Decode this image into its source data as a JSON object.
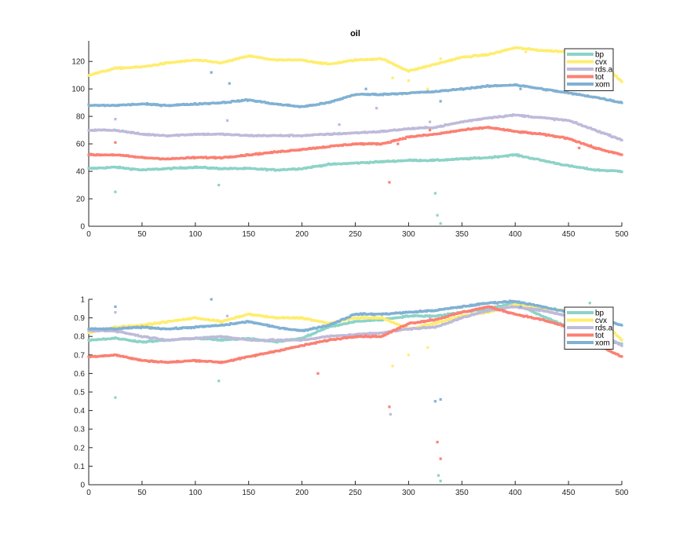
{
  "chart_data": [
    {
      "type": "scatter",
      "title": "oil",
      "xlim": [
        0,
        500
      ],
      "ylim": [
        0,
        135
      ],
      "xticks": [
        "0",
        "50",
        "100",
        "150",
        "200",
        "250",
        "300",
        "350",
        "400",
        "450",
        "500"
      ],
      "yticks": [
        "0",
        "20",
        "40",
        "60",
        "80",
        "100",
        "120"
      ],
      "grid": false,
      "legend": "top-right",
      "series": [
        {
          "name": "bp",
          "color": "#8dd3c7",
          "points": [
            [
              0,
              42
            ],
            [
              25,
              43
            ],
            [
              50,
              41
            ],
            [
              75,
              42
            ],
            [
              100,
              43
            ],
            [
              125,
              42
            ],
            [
              150,
              42
            ],
            [
              175,
              41
            ],
            [
              200,
              42
            ],
            [
              225,
              45
            ],
            [
              250,
              46
            ],
            [
              275,
              47
            ],
            [
              300,
              48
            ],
            [
              325,
              48
            ],
            [
              350,
              49
            ],
            [
              375,
              50
            ],
            [
              400,
              52
            ],
            [
              425,
              48
            ],
            [
              450,
              44
            ],
            [
              475,
              41
            ],
            [
              500,
              40
            ]
          ],
          "outliers": [
            [
              25,
              25
            ],
            [
              325,
              24
            ],
            [
              327,
              8
            ],
            [
              330,
              2
            ],
            [
              122,
              30
            ]
          ]
        },
        {
          "name": "cvx",
          "color": "#ffed6f",
          "points": [
            [
              0,
              110
            ],
            [
              25,
              115
            ],
            [
              50,
              116
            ],
            [
              75,
              119
            ],
            [
              100,
              121
            ],
            [
              125,
              119
            ],
            [
              150,
              124
            ],
            [
              175,
              121
            ],
            [
              200,
              121
            ],
            [
              225,
              118
            ],
            [
              250,
              121
            ],
            [
              275,
              122
            ],
            [
              300,
              113
            ],
            [
              325,
              118
            ],
            [
              350,
              123
            ],
            [
              375,
              125
            ],
            [
              400,
              130
            ],
            [
              425,
              128
            ],
            [
              450,
              127
            ],
            [
              475,
              124
            ],
            [
              500,
              105
            ]
          ],
          "outliers": [
            [
              285,
              108
            ],
            [
              300,
              106
            ],
            [
              318,
              100
            ],
            [
              330,
              122
            ],
            [
              410,
              127
            ]
          ]
        },
        {
          "name": "rds.a",
          "color": "#bebada",
          "points": [
            [
              0,
              70
            ],
            [
              25,
              70
            ],
            [
              50,
              67
            ],
            [
              75,
              66
            ],
            [
              100,
              67
            ],
            [
              125,
              67
            ],
            [
              150,
              66
            ],
            [
              175,
              66
            ],
            [
              200,
              66
            ],
            [
              225,
              67
            ],
            [
              250,
              68
            ],
            [
              275,
              69
            ],
            [
              300,
              71
            ],
            [
              325,
              72
            ],
            [
              350,
              76
            ],
            [
              375,
              79
            ],
            [
              400,
              81
            ],
            [
              425,
              79
            ],
            [
              450,
              77
            ],
            [
              475,
              70
            ],
            [
              500,
              63
            ]
          ],
          "outliers": [
            [
              25,
              78
            ],
            [
              130,
              77
            ],
            [
              235,
              74
            ],
            [
              270,
              86
            ],
            [
              320,
              76
            ]
          ]
        },
        {
          "name": "tot",
          "color": "#fb8072",
          "points": [
            [
              0,
              52
            ],
            [
              25,
              52
            ],
            [
              50,
              50
            ],
            [
              75,
              49
            ],
            [
              100,
              50
            ],
            [
              125,
              50
            ],
            [
              150,
              52
            ],
            [
              175,
              54
            ],
            [
              200,
              56
            ],
            [
              225,
              58
            ],
            [
              250,
              60
            ],
            [
              275,
              60
            ],
            [
              300,
              65
            ],
            [
              325,
              67
            ],
            [
              350,
              70
            ],
            [
              375,
              72
            ],
            [
              400,
              69
            ],
            [
              425,
              67
            ],
            [
              450,
              64
            ],
            [
              475,
              57
            ],
            [
              500,
              52
            ]
          ],
          "outliers": [
            [
              25,
              61
            ],
            [
              282,
              32
            ],
            [
              290,
              60
            ],
            [
              320,
              70
            ],
            [
              460,
              57
            ]
          ]
        },
        {
          "name": "xom",
          "color": "#80b1d3",
          "points": [
            [
              0,
              88
            ],
            [
              25,
              88
            ],
            [
              50,
              89
            ],
            [
              75,
              88
            ],
            [
              100,
              89
            ],
            [
              125,
              90
            ],
            [
              150,
              92
            ],
            [
              175,
              89
            ],
            [
              200,
              87
            ],
            [
              225,
              90
            ],
            [
              250,
              96
            ],
            [
              275,
              96
            ],
            [
              300,
              97
            ],
            [
              325,
              98
            ],
            [
              350,
              100
            ],
            [
              375,
              102
            ],
            [
              400,
              103
            ],
            [
              425,
              100
            ],
            [
              450,
              97
            ],
            [
              475,
              94
            ],
            [
              500,
              90
            ]
          ],
          "outliers": [
            [
              115,
              112
            ],
            [
              132,
              104
            ],
            [
              260,
              100
            ],
            [
              330,
              91
            ],
            [
              405,
              100
            ]
          ]
        }
      ]
    },
    {
      "type": "scatter",
      "title": "",
      "xlim": [
        0,
        500
      ],
      "ylim": [
        0,
        1
      ],
      "xticks": [
        "0",
        "50",
        "100",
        "150",
        "200",
        "250",
        "300",
        "350",
        "400",
        "450",
        "500"
      ],
      "yticks": [
        "0",
        "0.1",
        "0.2",
        "0.3",
        "0.4",
        "0.5",
        "0.6",
        "0.7",
        "0.8",
        "0.9",
        "1"
      ],
      "grid": false,
      "legend": "top-right",
      "series": [
        {
          "name": "bp",
          "color": "#8dd3c7",
          "points": [
            [
              0,
              0.78
            ],
            [
              25,
              0.79
            ],
            [
              50,
              0.77
            ],
            [
              75,
              0.78
            ],
            [
              100,
              0.79
            ],
            [
              125,
              0.78
            ],
            [
              150,
              0.79
            ],
            [
              175,
              0.77
            ],
            [
              200,
              0.79
            ],
            [
              225,
              0.85
            ],
            [
              250,
              0.88
            ],
            [
              275,
              0.89
            ],
            [
              300,
              0.91
            ],
            [
              325,
              0.91
            ],
            [
              350,
              0.93
            ],
            [
              375,
              0.95
            ],
            [
              400,
              0.98
            ],
            [
              425,
              0.91
            ],
            [
              450,
              0.85
            ],
            [
              475,
              0.78
            ],
            [
              500,
              0.76
            ]
          ],
          "outliers": [
            [
              25,
              0.47
            ],
            [
              328,
              0.05
            ],
            [
              330,
              0.02
            ],
            [
              122,
              0.56
            ],
            [
              470,
              0.98
            ]
          ]
        },
        {
          "name": "cvx",
          "color": "#ffed6f",
          "points": [
            [
              0,
              0.82
            ],
            [
              25,
              0.85
            ],
            [
              50,
              0.86
            ],
            [
              75,
              0.88
            ],
            [
              100,
              0.9
            ],
            [
              125,
              0.88
            ],
            [
              150,
              0.92
            ],
            [
              175,
              0.9
            ],
            [
              200,
              0.9
            ],
            [
              225,
              0.87
            ],
            [
              250,
              0.9
            ],
            [
              275,
              0.9
            ],
            [
              300,
              0.84
            ],
            [
              325,
              0.87
            ],
            [
              350,
              0.91
            ],
            [
              375,
              0.93
            ],
            [
              400,
              0.97
            ],
            [
              425,
              0.95
            ],
            [
              450,
              0.94
            ],
            [
              475,
              0.92
            ],
            [
              500,
              0.78
            ]
          ],
          "outliers": [
            [
              285,
              0.64
            ],
            [
              300,
              0.7
            ],
            [
              318,
              0.74
            ],
            [
              360,
              0.92
            ],
            [
              420,
              0.96
            ]
          ]
        },
        {
          "name": "rds.a",
          "color": "#bebada",
          "points": [
            [
              0,
              0.83
            ],
            [
              25,
              0.83
            ],
            [
              50,
              0.8
            ],
            [
              75,
              0.78
            ],
            [
              100,
              0.79
            ],
            [
              125,
              0.8
            ],
            [
              150,
              0.78
            ],
            [
              175,
              0.78
            ],
            [
              200,
              0.78
            ],
            [
              225,
              0.8
            ],
            [
              250,
              0.81
            ],
            [
              275,
              0.82
            ],
            [
              300,
              0.84
            ],
            [
              325,
              0.85
            ],
            [
              350,
              0.9
            ],
            [
              375,
              0.94
            ],
            [
              400,
              0.96
            ],
            [
              425,
              0.94
            ],
            [
              450,
              0.91
            ],
            [
              475,
              0.83
            ],
            [
              500,
              0.75
            ]
          ],
          "outliers": [
            [
              25,
              0.93
            ],
            [
              130,
              0.91
            ],
            [
              235,
              0.88
            ],
            [
              283,
              0.38
            ],
            [
              320,
              0.9
            ]
          ]
        },
        {
          "name": "tot",
          "color": "#fb8072",
          "points": [
            [
              0,
              0.69
            ],
            [
              25,
              0.7
            ],
            [
              50,
              0.67
            ],
            [
              75,
              0.66
            ],
            [
              100,
              0.67
            ],
            [
              125,
              0.66
            ],
            [
              150,
              0.69
            ],
            [
              175,
              0.72
            ],
            [
              200,
              0.75
            ],
            [
              225,
              0.78
            ],
            [
              250,
              0.8
            ],
            [
              275,
              0.8
            ],
            [
              300,
              0.87
            ],
            [
              325,
              0.89
            ],
            [
              350,
              0.93
            ],
            [
              375,
              0.96
            ],
            [
              400,
              0.92
            ],
            [
              425,
              0.89
            ],
            [
              450,
              0.85
            ],
            [
              475,
              0.76
            ],
            [
              500,
              0.69
            ]
          ],
          "outliers": [
            [
              215,
              0.6
            ],
            [
              282,
              0.42
            ],
            [
              327,
              0.23
            ],
            [
              330,
              0.14
            ],
            [
              465,
              0.74
            ]
          ]
        },
        {
          "name": "xom",
          "color": "#80b1d3",
          "points": [
            [
              0,
              0.84
            ],
            [
              25,
              0.84
            ],
            [
              50,
              0.85
            ],
            [
              75,
              0.84
            ],
            [
              100,
              0.85
            ],
            [
              125,
              0.86
            ],
            [
              150,
              0.88
            ],
            [
              175,
              0.85
            ],
            [
              200,
              0.83
            ],
            [
              225,
              0.86
            ],
            [
              250,
              0.92
            ],
            [
              275,
              0.92
            ],
            [
              300,
              0.93
            ],
            [
              325,
              0.94
            ],
            [
              350,
              0.96
            ],
            [
              375,
              0.98
            ],
            [
              400,
              0.99
            ],
            [
              425,
              0.96
            ],
            [
              450,
              0.93
            ],
            [
              475,
              0.9
            ],
            [
              500,
              0.86
            ]
          ],
          "outliers": [
            [
              25,
              0.96
            ],
            [
              115,
              1.0
            ],
            [
              325,
              0.45
            ],
            [
              330,
              0.46
            ],
            [
              405,
              0.96
            ]
          ]
        }
      ]
    }
  ]
}
